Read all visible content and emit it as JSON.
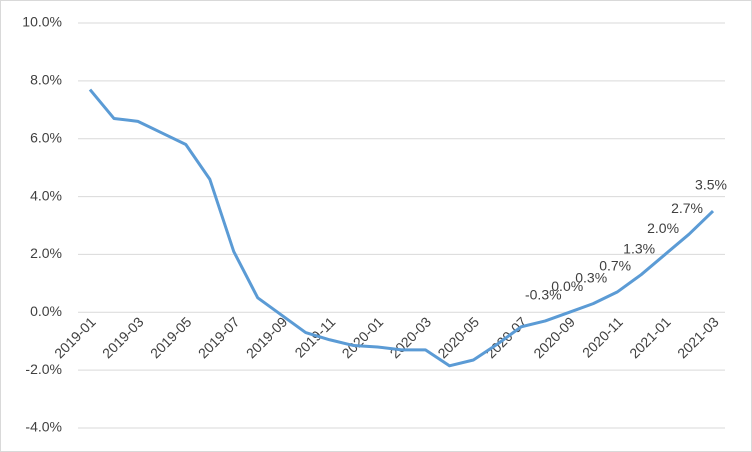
{
  "chart_data": {
    "type": "line",
    "categories": [
      "2019-01",
      null,
      "2019-03",
      null,
      "2019-05",
      null,
      "2019-07",
      null,
      "2019-09",
      null,
      "2019-11",
      null,
      "2020-01",
      null,
      "2020-03",
      null,
      "2020-05",
      null,
      "2020-07",
      null,
      "2020-09",
      null,
      "2020-11",
      null,
      "2021-01",
      null,
      "2021-03"
    ],
    "series": [
      {
        "color": "#5b9bd5",
        "values": [
          7.7,
          6.7,
          6.6,
          6.2,
          5.8,
          4.6,
          2.1,
          0.5,
          -0.1,
          -0.7,
          -0.95,
          -1.15,
          -1.2,
          -1.3,
          -1.3,
          -1.85,
          -1.65,
          -1.1,
          -0.5,
          -0.3,
          0.0,
          0.3,
          0.7,
          1.3,
          2.0,
          2.7,
          3.5
        ],
        "value_labels": [
          null,
          null,
          null,
          null,
          null,
          null,
          null,
          null,
          null,
          null,
          null,
          null,
          null,
          null,
          null,
          null,
          null,
          null,
          null,
          "-0.3%",
          "0.0%",
          "0.3%",
          "0.7%",
          "1.3%",
          "2.0%",
          "2.7%",
          "3.5%"
        ]
      }
    ],
    "ylim": [
      -4,
      10
    ],
    "yticks": [
      {
        "value": -4,
        "label": "-4.0%"
      },
      {
        "value": -2,
        "label": "-2.0%"
      },
      {
        "value": 0,
        "label": "0.0%"
      },
      {
        "value": 2,
        "label": "2.0%"
      },
      {
        "value": 4,
        "label": "4.0%"
      },
      {
        "value": 6,
        "label": "6.0%"
      },
      {
        "value": 8,
        "label": "8.0%"
      },
      {
        "value": 10,
        "label": "10.0%"
      }
    ],
    "grid": true
  }
}
